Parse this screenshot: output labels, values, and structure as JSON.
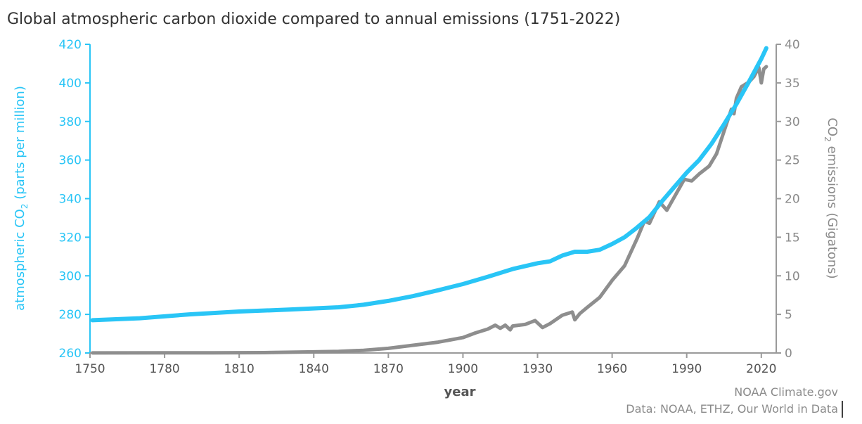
{
  "chart_data": {
    "type": "line",
    "title": "Global atmospheric carbon dioxide compared to annual emissions (1751-2022)",
    "xlabel": "year",
    "ylabel_left": {
      "prefix": "atmospheric CO",
      "sub": "2",
      "suffix": " (parts per million)"
    },
    "ylabel_right": {
      "prefix": "CO",
      "sub": "2",
      "suffix": " emissions (Gigatons)"
    },
    "xlim": [
      1750,
      2026
    ],
    "ylim_left": [
      260,
      420
    ],
    "ylim_right": [
      0,
      40
    ],
    "x_ticks": [
      1750,
      1780,
      1810,
      1840,
      1870,
      1900,
      1930,
      1960,
      1990,
      2020
    ],
    "x_tick_labels": [
      "1750",
      "1780",
      "1810",
      "1840",
      "1870",
      "1900",
      "1930",
      "1960",
      "1990",
      "2020"
    ],
    "y_left_ticks": [
      260,
      280,
      300,
      320,
      340,
      360,
      380,
      400,
      420
    ],
    "y_left_tick_labels": [
      "260",
      "280",
      "300",
      "320",
      "340",
      "360",
      "380",
      "400",
      "420"
    ],
    "y_right_ticks": [
      0,
      5,
      10,
      15,
      20,
      25,
      30,
      35,
      40
    ],
    "y_right_tick_labels": [
      "0",
      "5",
      "10",
      "15",
      "20",
      "25",
      "30",
      "35",
      "40"
    ],
    "grid": false,
    "series": [
      {
        "axis": "left",
        "color": "#29c5f6",
        "points": [
          [
            1751,
            277
          ],
          [
            1770,
            278
          ],
          [
            1790,
            280
          ],
          [
            1810,
            281.5
          ],
          [
            1830,
            282.5
          ],
          [
            1850,
            283.7
          ],
          [
            1860,
            285
          ],
          [
            1870,
            287
          ],
          [
            1880,
            289.5
          ],
          [
            1890,
            292.5
          ],
          [
            1900,
            295.7
          ],
          [
            1910,
            299.5
          ],
          [
            1920,
            303.5
          ],
          [
            1930,
            306.5
          ],
          [
            1935,
            307.5
          ],
          [
            1940,
            310.5
          ],
          [
            1945,
            312.5
          ],
          [
            1950,
            312.5
          ],
          [
            1955,
            313.5
          ],
          [
            1960,
            316.5
          ],
          [
            1965,
            320
          ],
          [
            1970,
            325
          ],
          [
            1975,
            330.5
          ],
          [
            1980,
            338.5
          ],
          [
            1985,
            346
          ],
          [
            1990,
            353.5
          ],
          [
            1995,
            360
          ],
          [
            2000,
            368.5
          ],
          [
            2005,
            378.5
          ],
          [
            2010,
            389
          ],
          [
            2015,
            400.5
          ],
          [
            2020,
            412.5
          ],
          [
            2022,
            418
          ]
        ]
      },
      {
        "axis": "right",
        "color": "#8e8e8e",
        "points": [
          [
            1751,
            0.01
          ],
          [
            1780,
            0.02
          ],
          [
            1800,
            0.03
          ],
          [
            1820,
            0.05
          ],
          [
            1840,
            0.15
          ],
          [
            1850,
            0.2
          ],
          [
            1860,
            0.35
          ],
          [
            1870,
            0.6
          ],
          [
            1880,
            1.0
          ],
          [
            1890,
            1.4
          ],
          [
            1900,
            2.0
          ],
          [
            1905,
            2.6
          ],
          [
            1910,
            3.1
          ],
          [
            1913,
            3.6
          ],
          [
            1915,
            3.2
          ],
          [
            1917,
            3.6
          ],
          [
            1919,
            3.0
          ],
          [
            1920,
            3.5
          ],
          [
            1925,
            3.7
          ],
          [
            1929,
            4.2
          ],
          [
            1932,
            3.3
          ],
          [
            1935,
            3.8
          ],
          [
            1940,
            4.9
          ],
          [
            1944,
            5.3
          ],
          [
            1945,
            4.3
          ],
          [
            1947,
            5.1
          ],
          [
            1950,
            5.9
          ],
          [
            1955,
            7.2
          ],
          [
            1960,
            9.4
          ],
          [
            1965,
            11.3
          ],
          [
            1970,
            14.8
          ],
          [
            1973,
            17.1
          ],
          [
            1975,
            16.8
          ],
          [
            1979,
            19.6
          ],
          [
            1982,
            18.5
          ],
          [
            1985,
            20.2
          ],
          [
            1989,
            22.5
          ],
          [
            1992,
            22.3
          ],
          [
            1995,
            23.2
          ],
          [
            1999,
            24.2
          ],
          [
            2002,
            25.8
          ],
          [
            2005,
            28.7
          ],
          [
            2008,
            31.6
          ],
          [
            2009,
            31.0
          ],
          [
            2010,
            33.0
          ],
          [
            2012,
            34.5
          ],
          [
            2015,
            35.1
          ],
          [
            2017,
            35.8
          ],
          [
            2019,
            37.0
          ],
          [
            2020,
            35.0
          ],
          [
            2021,
            36.8
          ],
          [
            2022,
            37.1
          ]
        ]
      }
    ]
  },
  "credits": {
    "line1": "NOAA Climate.gov",
    "line2": "Data: NOAA, ETHZ, Our World in Data"
  }
}
